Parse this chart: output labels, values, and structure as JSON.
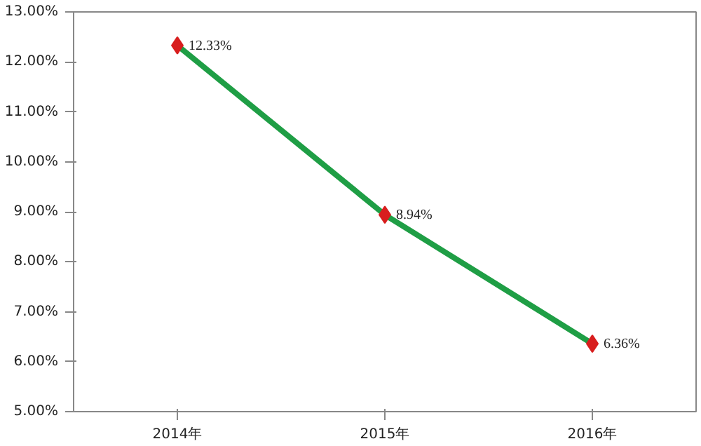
{
  "chart_data": {
    "type": "line",
    "categories": [
      "2014年",
      "2015年",
      "2016年"
    ],
    "series": [
      {
        "color": "#1f9e45",
        "colors": [
          "#d81e1e",
          "#d81e1e",
          "#d81e1e"
        ],
        "values": [
          12.33,
          8.94,
          6.36
        ],
        "value_labels": [
          "12.33%",
          "8.94%",
          "6.36%"
        ]
      }
    ],
    "ylim": [
      5,
      13
    ],
    "yticks": [
      {
        "value": 5,
        "label": "5.00%"
      },
      {
        "value": 6,
        "label": "6.00%"
      },
      {
        "value": 7,
        "label": "7.00%"
      },
      {
        "value": 8,
        "label": "8.00%"
      },
      {
        "value": 9,
        "label": "9.00%"
      },
      {
        "value": 10,
        "label": "10.00%"
      },
      {
        "value": 11,
        "label": "11.00%"
      },
      {
        "value": 12,
        "label": "12.00%"
      },
      {
        "value": 13,
        "label": "13.00%"
      }
    ],
    "grid": false,
    "marker": "diamond",
    "line_style": "solid"
  }
}
